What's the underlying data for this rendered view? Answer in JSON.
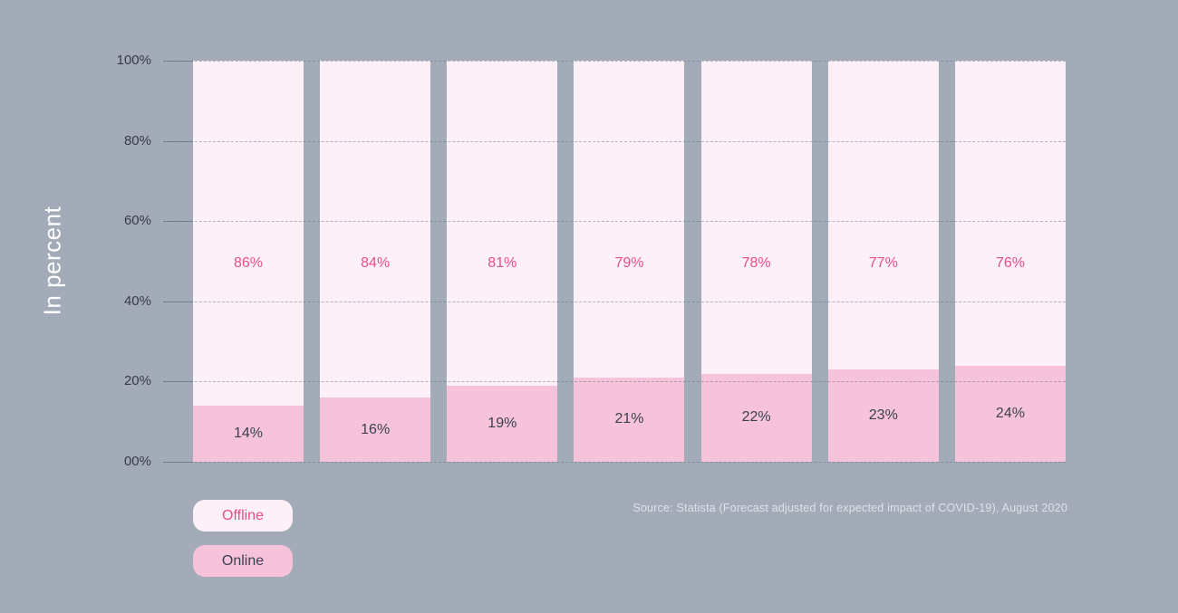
{
  "chart_data": {
    "type": "bar",
    "subtype": "stacked-percentage-columns",
    "title": "",
    "ylabel": "In percent",
    "ylim": [
      0,
      100
    ],
    "yticks": [
      "100%",
      "80%",
      "60%",
      "40%",
      "20%",
      "00%"
    ],
    "grid": "horizontal-dashed",
    "legend_position": "bottom-left",
    "columns": 7,
    "series": [
      {
        "name": "Offline",
        "values": [
          86,
          84,
          81,
          79,
          78,
          77,
          76
        ],
        "bar_color": "#fdf0f6",
        "label_color": "#ea4e87"
      },
      {
        "name": "Online",
        "values": [
          14,
          16,
          19,
          21,
          22,
          23,
          24
        ],
        "bar_color": "#f6c3da",
        "label_color": "#3a4050"
      }
    ]
  },
  "legend": {
    "items": [
      {
        "label": "Offline",
        "bg": "#fdf0f6",
        "text_color": "#ea4e87"
      },
      {
        "label": "Online",
        "bg": "#f6c3da",
        "text_color": "#3a4050"
      }
    ]
  },
  "source_note": "Source: Statista (Forecast adjusted for expected impact of COVID-19), August 2020",
  "colors": {
    "background": "#a3abb8",
    "axis_text": "#353b49",
    "gridline": "rgba(92,102,118,0.45)",
    "ylabel_text": "#ffffff",
    "source_text": "#dfe3e9"
  }
}
